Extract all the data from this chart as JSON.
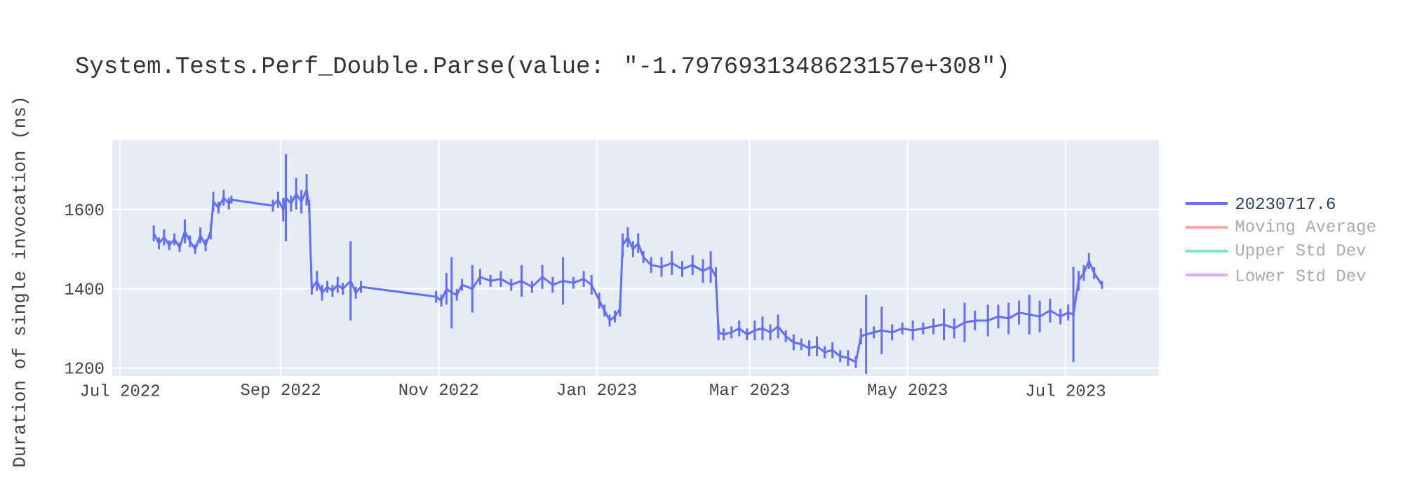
{
  "chart_data": {
    "type": "line",
    "title": "System.Tests.Perf_Double.Parse(value: \"-1.7976931348623157e+308\")",
    "ylabel": "Duration of single invocation (ns)",
    "x": [
      "2022-07-14",
      "2022-07-16",
      "2022-07-18",
      "2022-07-20",
      "2022-07-22",
      "2022-07-24",
      "2022-07-26",
      "2022-07-28",
      "2022-07-30",
      "2022-08-01",
      "2022-08-03",
      "2022-08-05",
      "2022-08-06",
      "2022-08-08",
      "2022-08-10",
      "2022-08-12",
      "2022-08-13",
      "2022-08-29",
      "2022-08-31",
      "2022-09-02",
      "2022-09-03",
      "2022-09-05",
      "2022-09-07",
      "2022-09-09",
      "2022-09-11",
      "2022-09-12",
      "2022-09-13",
      "2022-09-15",
      "2022-09-17",
      "2022-09-19",
      "2022-09-21",
      "2022-09-23",
      "2022-09-25",
      "2022-09-28",
      "2022-09-30",
      "2022-10-02",
      "2022-10-31",
      "2022-11-02",
      "2022-11-04",
      "2022-11-06",
      "2022-11-08",
      "2022-11-10",
      "2022-11-14",
      "2022-11-17",
      "2022-11-21",
      "2022-11-25",
      "2022-11-29",
      "2022-12-03",
      "2022-12-07",
      "2022-12-11",
      "2022-12-15",
      "2022-12-19",
      "2022-12-23",
      "2022-12-27",
      "2022-12-30",
      "2023-01-02",
      "2023-01-04",
      "2023-01-06",
      "2023-01-08",
      "2023-01-10",
      "2023-01-11",
      "2023-01-13",
      "2023-01-15",
      "2023-01-17",
      "2023-01-19",
      "2023-01-22",
      "2023-01-26",
      "2023-01-30",
      "2023-02-03",
      "2023-02-07",
      "2023-02-11",
      "2023-02-14",
      "2023-02-16",
      "2023-02-17",
      "2023-02-19",
      "2023-02-22",
      "2023-02-25",
      "2023-02-28",
      "2023-03-03",
      "2023-03-06",
      "2023-03-09",
      "2023-03-12",
      "2023-03-15",
      "2023-03-18",
      "2023-03-21",
      "2023-03-24",
      "2023-03-27",
      "2023-03-30",
      "2023-04-02",
      "2023-04-05",
      "2023-04-08",
      "2023-04-11",
      "2023-04-13",
      "2023-04-15",
      "2023-04-18",
      "2023-04-21",
      "2023-04-25",
      "2023-04-29",
      "2023-05-03",
      "2023-05-07",
      "2023-05-11",
      "2023-05-15",
      "2023-05-19",
      "2023-05-23",
      "2023-05-27",
      "2023-06-01",
      "2023-06-05",
      "2023-06-09",
      "2023-06-13",
      "2023-06-17",
      "2023-06-21",
      "2023-06-25",
      "2023-06-29",
      "2023-07-02",
      "2023-07-04",
      "2023-07-06",
      "2023-07-08",
      "2023-07-10",
      "2023-07-12",
      "2023-07-15"
    ],
    "series": [
      {
        "name": "20230717.6",
        "color": "#636efa",
        "values": [
          1540,
          1515,
          1530,
          1510,
          1525,
          1505,
          1545,
          1520,
          1500,
          1535,
          1510,
          1545,
          1620,
          1605,
          1630,
          1615,
          1625,
          1610,
          1625,
          1600,
          1630,
          1615,
          1640,
          1620,
          1650,
          1610,
          1400,
          1420,
          1390,
          1405,
          1395,
          1410,
          1400,
          1420,
          1390,
          1405,
          1380,
          1370,
          1400,
          1390,
          1385,
          1410,
          1400,
          1430,
          1420,
          1425,
          1410,
          1420,
          1405,
          1430,
          1410,
          1420,
          1415,
          1425,
          1410,
          1370,
          1345,
          1320,
          1330,
          1350,
          1510,
          1530,
          1500,
          1515,
          1480,
          1460,
          1455,
          1465,
          1450,
          1460,
          1445,
          1455,
          1430,
          1290,
          1285,
          1290,
          1300,
          1285,
          1295,
          1300,
          1290,
          1305,
          1280,
          1265,
          1260,
          1250,
          1255,
          1240,
          1245,
          1230,
          1225,
          1215,
          1280,
          1285,
          1290,
          1295,
          1290,
          1300,
          1295,
          1300,
          1305,
          1310,
          1300,
          1315,
          1320,
          1320,
          1330,
          1325,
          1340,
          1335,
          1330,
          1345,
          1330,
          1340,
          1335,
          1420,
          1440,
          1470,
          1440,
          1410
        ],
        "errors": [
          20,
          15,
          20,
          12,
          15,
          12,
          30,
          15,
          12,
          20,
          15,
          20,
          25,
          15,
          20,
          15,
          10,
          15,
          20,
          30,
          110,
          20,
          40,
          30,
          40,
          15,
          15,
          25,
          20,
          15,
          15,
          20,
          15,
          100,
          15,
          15,
          15,
          15,
          40,
          90,
          15,
          15,
          60,
          20,
          15,
          20,
          15,
          40,
          15,
          30,
          20,
          60,
          15,
          20,
          25,
          20,
          15,
          15,
          15,
          20,
          30,
          25,
          20,
          25,
          15,
          20,
          25,
          30,
          20,
          25,
          30,
          40,
          25,
          20,
          15,
          15,
          20,
          15,
          25,
          30,
          20,
          30,
          15,
          20,
          15,
          20,
          25,
          15,
          20,
          15,
          20,
          15,
          20,
          100,
          15,
          60,
          20,
          15,
          25,
          15,
          20,
          40,
          25,
          50,
          25,
          40,
          30,
          40,
          30,
          50,
          40,
          30,
          20,
          20,
          120,
          25,
          20,
          20,
          15,
          10
        ]
      },
      {
        "name": "Moving Average",
        "color": "#ef553b",
        "values": [
          null,
          null,
          null,
          null,
          null,
          null,
          null,
          null,
          null,
          null,
          null,
          null,
          null,
          null,
          null,
          null,
          null,
          null,
          null,
          null,
          null,
          null,
          null,
          null,
          null,
          null,
          null,
          null,
          null,
          null,
          null,
          null,
          null,
          null,
          null,
          null,
          null,
          null,
          null,
          null,
          null,
          null,
          null,
          null,
          null,
          null,
          null,
          null,
          null,
          null,
          null,
          null,
          null,
          null,
          null,
          null,
          null,
          null,
          null,
          null,
          null,
          null,
          null,
          null,
          null,
          null,
          null,
          null,
          null,
          null,
          null,
          null,
          null,
          null,
          null,
          null,
          null,
          null,
          null,
          null,
          null,
          null,
          null,
          null,
          null,
          null,
          null,
          null,
          null,
          null,
          null,
          null,
          null,
          null,
          null,
          null,
          null,
          null,
          null,
          null,
          null,
          null,
          null,
          null,
          null,
          null,
          null,
          null,
          null,
          null,
          null,
          null,
          null,
          null,
          null,
          null,
          null,
          null,
          null,
          null
        ]
      },
      {
        "name": "Upper Std Dev",
        "color": "#00cc96",
        "values": [
          null,
          null,
          null,
          null,
          null,
          null,
          null,
          null,
          null,
          null,
          null,
          null,
          null,
          null,
          null,
          null,
          null,
          null,
          null,
          null,
          null,
          null,
          null,
          null,
          null,
          null,
          null,
          null,
          null,
          null,
          null,
          null,
          null,
          null,
          null,
          null,
          null,
          null,
          null,
          null,
          null,
          null,
          null,
          null,
          null,
          null,
          null,
          null,
          null,
          null,
          null,
          null,
          null,
          null,
          null,
          null,
          null,
          null,
          null,
          null,
          null,
          null,
          null,
          null,
          null,
          null,
          null,
          null,
          null,
          null,
          null,
          null,
          null,
          null,
          null,
          null,
          null,
          null,
          null,
          null,
          null,
          null,
          null,
          null,
          null,
          null,
          null,
          null,
          null,
          null,
          null,
          null,
          null,
          null,
          null,
          null,
          null,
          null,
          null,
          null,
          null,
          null,
          null,
          null,
          null,
          null,
          null,
          null,
          null,
          null,
          null,
          null,
          null,
          null,
          null,
          null,
          null,
          null,
          null,
          null
        ]
      },
      {
        "name": "Lower Std Dev",
        "color": "#ab63fa",
        "values": [
          null,
          null,
          null,
          null,
          null,
          null,
          null,
          null,
          null,
          null,
          null,
          null,
          null,
          null,
          null,
          null,
          null,
          null,
          null,
          null,
          null,
          null,
          null,
          null,
          null,
          null,
          null,
          null,
          null,
          null,
          null,
          null,
          null,
          null,
          null,
          null,
          null,
          null,
          null,
          null,
          null,
          null,
          null,
          null,
          null,
          null,
          null,
          null,
          null,
          null,
          null,
          null,
          null,
          null,
          null,
          null,
          null,
          null,
          null,
          null,
          null,
          null,
          null,
          null,
          null,
          null,
          null,
          null,
          null,
          null,
          null,
          null,
          null,
          null,
          null,
          null,
          null,
          null,
          null,
          null,
          null,
          null,
          null,
          null,
          null,
          null,
          null,
          null,
          null,
          null,
          null,
          null,
          null,
          null,
          null,
          null,
          null,
          null,
          null,
          null,
          null,
          null,
          null,
          null,
          null,
          null,
          null,
          null,
          null,
          null,
          null,
          null,
          null,
          null,
          null,
          null,
          null,
          null,
          null,
          null
        ]
      }
    ],
    "xlim": [
      "2022-06-28",
      "2023-08-06"
    ],
    "ylim": [
      1180,
      1775
    ],
    "xticks": [
      {
        "value": "2022-07-01",
        "label": "Jul 2022"
      },
      {
        "value": "2022-09-01",
        "label": "Sep 2022"
      },
      {
        "value": "2022-11-01",
        "label": "Nov 2022"
      },
      {
        "value": "2023-01-01",
        "label": "Jan 2023"
      },
      {
        "value": "2023-03-01",
        "label": "Mar 2023"
      },
      {
        "value": "2023-05-01",
        "label": "May 2023"
      },
      {
        "value": "2023-07-01",
        "label": "Jul 2023"
      }
    ],
    "yticks": [
      1200,
      1400,
      1600
    ],
    "grid": true,
    "legend": "right"
  }
}
